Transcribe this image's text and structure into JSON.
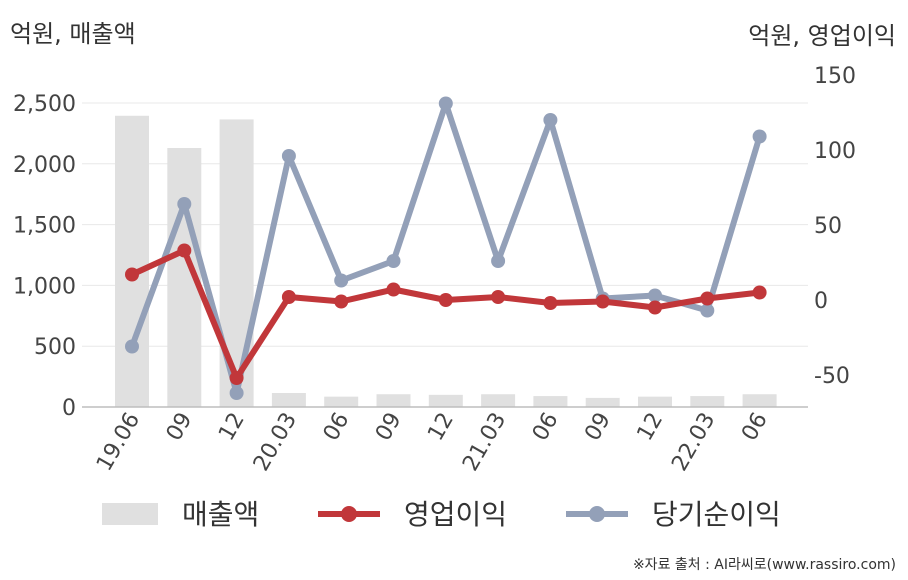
{
  "chart_data": {
    "type": "bar+line",
    "left_unit": "억원, 매출액",
    "right_unit": "억원, 영업이익",
    "categories": [
      "19.06",
      "09",
      "12",
      "20.03",
      "06",
      "09",
      "12",
      "21.03",
      "06",
      "09",
      "12",
      "22.03",
      "06"
    ],
    "left_axis": {
      "ticks": [
        "0",
        "500",
        "1,000",
        "1,500",
        "2,000",
        "2,500"
      ],
      "range": [
        0,
        2500
      ]
    },
    "right_axis": {
      "ticks": [
        "-50",
        "0",
        "50",
        "100",
        "150"
      ],
      "range": [
        -70,
        150
      ]
    },
    "series": [
      {
        "name": "매출액",
        "type": "bar",
        "axis": "left",
        "color": "#e0e0e0",
        "values": [
          2395,
          2130,
          2365,
          115,
          85,
          105,
          100,
          105,
          90,
          75,
          85,
          90,
          105
        ]
      },
      {
        "name": "영업이익",
        "type": "line",
        "axis": "right",
        "color": "#c1373a",
        "values": [
          17,
          33,
          -52,
          2,
          -1,
          7,
          0,
          2,
          -2,
          -1,
          -5,
          1,
          5
        ]
      },
      {
        "name": "당기순이익",
        "type": "line",
        "axis": "right",
        "color": "#93a0b8",
        "values": [
          -31,
          64,
          -62,
          96,
          13,
          26,
          131,
          26,
          120,
          1,
          3,
          -7,
          109
        ]
      }
    ],
    "grid": true,
    "legend_position": "bottom"
  },
  "footer": {
    "source": "※자료 출처 : AI라씨로(www.rassiro.com)"
  }
}
